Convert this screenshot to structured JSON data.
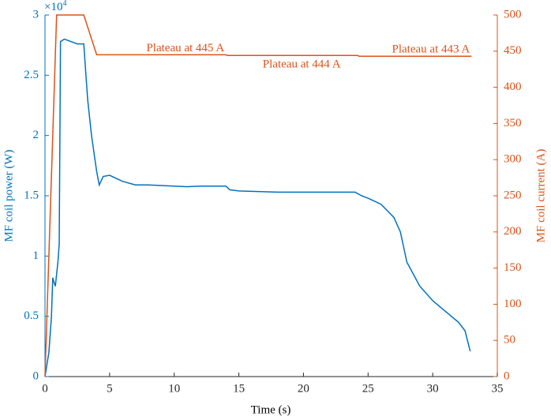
{
  "chart_data": {
    "type": "line",
    "xlabel": "Time (s)",
    "ylabel": "MF coil power (W)",
    "y2label": "MF coil current (A)",
    "y_multiplier": {
      "base": "×10",
      "exponent": "4"
    },
    "xlim": [
      0,
      35
    ],
    "xticks": [
      0,
      5,
      10,
      15,
      20,
      25,
      30,
      35
    ],
    "ylim": [
      0,
      30000
    ],
    "yticks": [
      0,
      {
        "value": 5000,
        "label": "0.5"
      },
      {
        "value": 10000,
        "label": "1"
      },
      {
        "value": 15000,
        "label": "1.5"
      },
      {
        "value": 20000,
        "label": "2"
      },
      {
        "value": 25000,
        "label": "2.5"
      },
      {
        "value": 30000,
        "label": "3"
      }
    ],
    "y2lim": [
      0,
      500
    ],
    "y2ticks": [
      0,
      50,
      100,
      150,
      200,
      250,
      300,
      350,
      400,
      450,
      500
    ],
    "series": [
      {
        "name": "MF coil power",
        "color": "#0072BD",
        "axis": "y",
        "x": [
          0,
          0.3,
          0.5,
          0.6,
          0.7,
          0.8,
          1.0,
          1.1,
          1.2,
          1.5,
          2,
          2.5,
          3,
          3.3,
          3.6,
          4,
          4.2,
          4.5,
          5,
          6,
          7,
          8,
          10,
          11,
          12,
          14,
          14.3,
          15,
          18,
          22,
          24,
          24.5,
          25,
          26,
          27,
          27.5,
          28,
          29,
          30,
          31,
          32,
          32.5,
          32.9
        ],
        "values": [
          0,
          2000,
          5000,
          8200,
          7800,
          7500,
          9500,
          11000,
          27800,
          28000,
          27800,
          27600,
          27600,
          23000,
          20000,
          17000,
          15900,
          16600,
          16700,
          16200,
          15900,
          15900,
          15800,
          15750,
          15800,
          15800,
          15500,
          15400,
          15300,
          15300,
          15300,
          15000,
          14800,
          14300,
          13200,
          12000,
          9500,
          7500,
          6300,
          5400,
          4500,
          3800,
          2100
        ]
      },
      {
        "name": "MF coil current",
        "color": "#D95319",
        "axis": "y2",
        "x": [
          0,
          0.9,
          3,
          4,
          14,
          14.1,
          24.2,
          24.3,
          33
        ],
        "values": [
          0,
          500,
          500,
          445,
          445,
          444,
          444,
          443,
          443
        ]
      }
    ],
    "annotations": [
      {
        "text": "Plateau at 445 A",
        "x": 14,
        "y": 445
      },
      {
        "text": "Plateau at 444 A",
        "x": 23,
        "y": 444
      },
      {
        "text": "Plateau at 443 A",
        "x": 33,
        "y": 443
      }
    ]
  }
}
